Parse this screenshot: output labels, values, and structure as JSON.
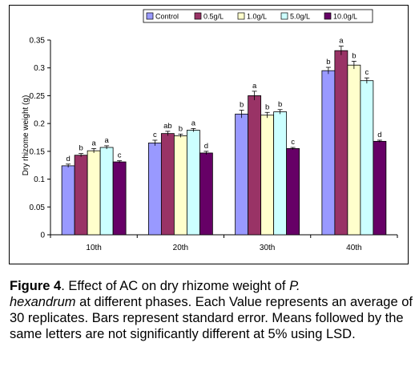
{
  "chart_data": {
    "type": "bar",
    "categories": [
      "10th",
      "20th",
      "30th",
      "40th"
    ],
    "series": [
      {
        "name": "Control",
        "color": "#9999ff",
        "values": [
          0.124,
          0.165,
          0.217,
          0.295
        ],
        "errors": [
          0.003,
          0.005,
          0.007,
          0.006
        ],
        "letters": [
          "d",
          "c",
          "b",
          "b"
        ]
      },
      {
        "name": "0.5g/L",
        "color": "#993366",
        "values": [
          0.143,
          0.182,
          0.25,
          0.331
        ],
        "errors": [
          0.003,
          0.004,
          0.008,
          0.008
        ],
        "letters": [
          "b",
          "ab",
          "a",
          "a"
        ]
      },
      {
        "name": "1.0g/L",
        "color": "#ffffcc",
        "values": [
          0.151,
          0.178,
          0.215,
          0.305
        ],
        "errors": [
          0.004,
          0.003,
          0.005,
          0.007
        ],
        "letters": [
          "a",
          "b",
          "b",
          "b"
        ]
      },
      {
        "name": "5.0g/L",
        "color": "#ccffff",
        "values": [
          0.157,
          0.188,
          0.221,
          0.277
        ],
        "errors": [
          0.003,
          0.003,
          0.004,
          0.005
        ],
        "letters": [
          "a",
          "a",
          "b",
          "c"
        ]
      },
      {
        "name": "10.0g/L",
        "color": "#660066",
        "values": [
          0.131,
          0.147,
          0.155,
          0.168
        ],
        "errors": [
          0.002,
          0.003,
          0.002,
          0.002
        ],
        "letters": [
          "c",
          "d",
          "c",
          "d"
        ]
      }
    ],
    "yticks": [
      "0",
      "0.05",
      "0.1",
      "0.15",
      "0.2",
      "0.25",
      "0.3",
      "0.35"
    ],
    "ylim": [
      0,
      0.35
    ],
    "ylabel": "Dry rhizome weight (g)",
    "xlabel": "",
    "legend_position": "top"
  },
  "caption": {
    "label": "Figure 4",
    "text_1": ". Effect of AC on dry rhizome weight of ",
    "species_genus": "P.",
    "species_epithet": "hexandrum",
    "text_2": " at different phases. Each Value represents an average of 30 replicates. Bars represent standard error. Means followed by the same letters are not significantly different at 5% using LSD."
  }
}
